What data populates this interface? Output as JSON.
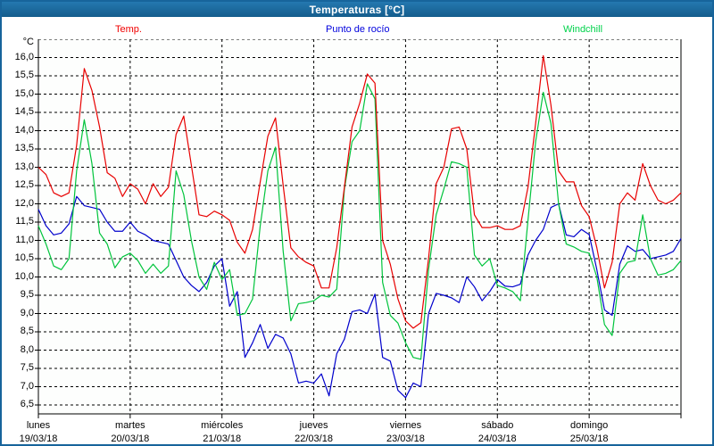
{
  "window": {
    "title": "Temperaturas [°C]"
  },
  "legend": [
    {
      "id": "temp",
      "label": "Temp.",
      "color": "#f00000"
    },
    {
      "id": "dew-point",
      "label": "Punto de rocío",
      "color": "#0000dd"
    },
    {
      "id": "windchill",
      "label": "Windchill",
      "color": "#00d24b"
    }
  ],
  "axes": {
    "y_unit": "°C",
    "y_labels": [
      "16,0",
      "15,5",
      "15,0",
      "14,5",
      "14,0",
      "13,5",
      "13,0",
      "12,5",
      "12,0",
      "11,5",
      "11,0",
      "10,5",
      "10,0",
      "9,5",
      "9,0",
      "8,5",
      "8,0",
      "7,5",
      "7,0",
      "6,5"
    ],
    "x_days": [
      {
        "name": "lunes",
        "date": "19/03/18"
      },
      {
        "name": "martes",
        "date": "20/03/18"
      },
      {
        "name": "miércoles",
        "date": "21/03/18"
      },
      {
        "name": "jueves",
        "date": "22/03/18"
      },
      {
        "name": "viernes",
        "date": "23/03/18"
      },
      {
        "name": "sábado",
        "date": "24/03/18"
      },
      {
        "name": "domingo",
        "date": "25/03/18"
      }
    ]
  },
  "colors": {
    "grid": "#000000",
    "axis": "#000000",
    "frame": "#17649b",
    "titlebar_top": "#2478b0",
    "titlebar_bottom": "#155d8c",
    "plot_bg": "#fdfefd"
  },
  "chart_data": {
    "type": "line",
    "title": "Temperaturas [°C]",
    "xlabel": "",
    "ylabel": "°C",
    "ylim": [
      6.25,
      16.5
    ],
    "y_tick_step": 0.5,
    "y_tick_min": 6.5,
    "y_tick_max": 16.0,
    "x_total_hours": 168,
    "x_step_hours": 2,
    "x_days": 7,
    "grid": "dashed",
    "legend_position": "top",
    "series": [
      {
        "id": "temp",
        "name": "Temp.",
        "color": "#e80000",
        "values": [
          13.0,
          12.8,
          12.3,
          12.2,
          12.3,
          13.6,
          15.7,
          15.1,
          14.1,
          12.85,
          12.7,
          12.2,
          12.55,
          12.4,
          12.0,
          12.55,
          12.2,
          12.45,
          13.9,
          14.4,
          13.05,
          11.7,
          11.65,
          11.8,
          11.7,
          11.55,
          10.95,
          10.65,
          11.3,
          12.6,
          13.85,
          14.35,
          12.5,
          10.8,
          10.55,
          10.4,
          10.3,
          9.7,
          9.7,
          10.8,
          12.45,
          14.1,
          14.75,
          15.55,
          15.3,
          11.0,
          10.35,
          9.4,
          8.8,
          8.6,
          8.75,
          10.5,
          12.55,
          13.0,
          14.05,
          14.1,
          13.5,
          11.7,
          11.35,
          11.35,
          11.4,
          11.3,
          11.3,
          11.4,
          12.45,
          14.2,
          16.05,
          14.7,
          12.9,
          12.6,
          12.6,
          11.95,
          11.65,
          10.8,
          9.7,
          10.4,
          12.0,
          12.3,
          12.1,
          13.1,
          12.5,
          12.1,
          12.0,
          12.1,
          12.3
        ]
      },
      {
        "id": "dew-point",
        "name": "Punto de rocío",
        "color": "#0000cc",
        "values": [
          11.85,
          11.4,
          11.15,
          11.2,
          11.45,
          12.2,
          11.95,
          11.9,
          11.85,
          11.5,
          11.25,
          11.25,
          11.5,
          11.25,
          11.15,
          11.0,
          10.95,
          10.9,
          10.45,
          10.0,
          9.77,
          9.6,
          9.85,
          10.3,
          10.5,
          9.2,
          9.6,
          7.8,
          8.2,
          8.7,
          8.05,
          8.43,
          8.33,
          7.9,
          7.1,
          7.15,
          7.1,
          7.35,
          6.75,
          7.9,
          8.3,
          9.05,
          9.1,
          9.0,
          9.53,
          7.8,
          7.7,
          6.9,
          6.7,
          7.1,
          7.0,
          9.0,
          9.55,
          9.5,
          9.43,
          9.3,
          10.0,
          9.73,
          9.35,
          9.6,
          9.93,
          9.75,
          9.73,
          9.8,
          10.6,
          11.0,
          11.3,
          11.9,
          12.0,
          11.15,
          11.1,
          11.3,
          11.16,
          10.2,
          9.1,
          8.95,
          10.35,
          10.85,
          10.7,
          10.75,
          10.5,
          10.55,
          10.6,
          10.7,
          11.05
        ]
      },
      {
        "id": "windchill",
        "name": "Windchill",
        "color": "#00c43c",
        "values": [
          11.4,
          10.9,
          10.3,
          10.2,
          10.5,
          12.9,
          14.3,
          13.1,
          11.2,
          10.9,
          10.25,
          10.55,
          10.65,
          10.45,
          10.1,
          10.35,
          10.1,
          10.3,
          12.9,
          12.25,
          11.0,
          10.0,
          9.66,
          10.4,
          9.93,
          10.2,
          8.95,
          9.0,
          9.4,
          11.4,
          12.9,
          13.55,
          10.7,
          8.8,
          9.27,
          9.3,
          9.35,
          9.5,
          9.45,
          9.67,
          12.4,
          13.7,
          14.0,
          15.28,
          14.87,
          9.85,
          8.95,
          8.74,
          8.2,
          7.8,
          7.75,
          10.2,
          11.7,
          12.4,
          13.15,
          13.1,
          13.0,
          10.6,
          10.3,
          10.5,
          9.77,
          9.7,
          9.6,
          9.35,
          11.55,
          13.7,
          15.05,
          14.2,
          12.0,
          10.9,
          10.82,
          10.7,
          10.65,
          10.0,
          8.7,
          8.4,
          10.1,
          10.4,
          10.45,
          11.7,
          10.5,
          10.05,
          10.1,
          10.2,
          10.45
        ]
      }
    ]
  }
}
